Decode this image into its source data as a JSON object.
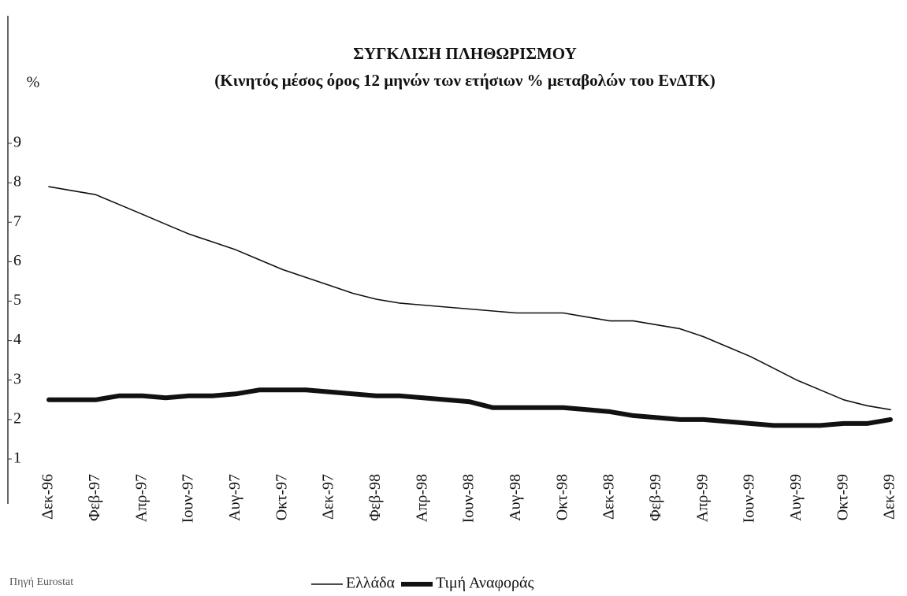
{
  "chart_data": {
    "type": "line",
    "title": "ΣΥΓΚΛΙΣΗ ΠΛΗΘΩΡΙΣΜΟΥ",
    "subtitle": "(Κινητός μέσος όρος 12 μηνών των ετήσιων % μεταβολών του ΕνΔΤΚ)",
    "y_label": "%",
    "source": "Πηγή Eurostat",
    "categories": [
      "Δεκ-96",
      null,
      "Φεβ-97",
      null,
      "Απρ-97",
      null,
      "Ιουν-97",
      null,
      "Αυγ-97",
      null,
      "Οκτ-97",
      null,
      "Δεκ-97",
      null,
      "Φεβ-98",
      null,
      "Απρ-98",
      null,
      "Ιουν-98",
      null,
      "Αυγ-98",
      null,
      "Οκτ-98",
      null,
      "Δεκ-98",
      null,
      "Φεβ-99",
      null,
      "Απρ-99",
      null,
      "Ιουν-99",
      null,
      "Αυγ-99",
      null,
      "Οκτ-99",
      null,
      "Δεκ-99"
    ],
    "series": [
      {
        "name": "Ελλάδα",
        "color": "#111111",
        "line_width": 1.6,
        "values": [
          7.9,
          7.8,
          7.7,
          7.45,
          7.2,
          6.95,
          6.7,
          6.5,
          6.3,
          6.05,
          5.8,
          5.6,
          5.4,
          5.2,
          5.05,
          4.95,
          4.9,
          4.85,
          4.8,
          4.75,
          4.7,
          4.7,
          4.7,
          4.6,
          4.5,
          4.5,
          4.4,
          4.3,
          4.1,
          3.85,
          3.6,
          3.3,
          3.0,
          2.75,
          2.5,
          2.35,
          2.25
        ]
      },
      {
        "name": "Τιμή Αναφοράς",
        "color": "#111111",
        "line_width": 6,
        "values": [
          2.5,
          2.5,
          2.5,
          2.6,
          2.6,
          2.55,
          2.6,
          2.6,
          2.65,
          2.75,
          2.75,
          2.75,
          2.7,
          2.65,
          2.6,
          2.6,
          2.55,
          2.5,
          2.45,
          2.3,
          2.3,
          2.3,
          2.3,
          2.25,
          2.2,
          2.1,
          2.05,
          2.0,
          2.0,
          1.95,
          1.9,
          1.85,
          1.85,
          1.85,
          1.9,
          1.9,
          2.0
        ]
      }
    ],
    "ylim": [
      1,
      9
    ],
    "yticks": [
      1,
      2,
      3,
      4,
      5,
      6,
      7,
      8,
      9
    ],
    "grid": false,
    "legend": "bottom"
  }
}
